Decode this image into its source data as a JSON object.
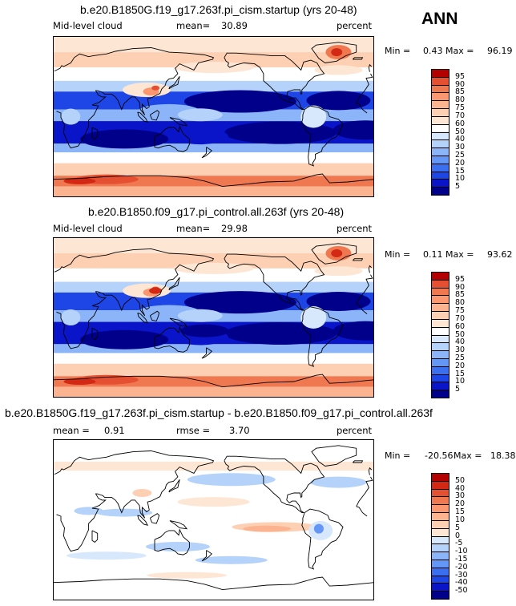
{
  "season": "ANN",
  "colors": {
    "seq": [
      "#00008b",
      "#0a14c8",
      "#1e46e6",
      "#3c6ef0",
      "#6496f5",
      "#8cb4f8",
      "#b4d2fa",
      "#d8e8fc",
      "#ffffff",
      "#fde6d4",
      "#fdd0b4",
      "#fcb490",
      "#fa9670",
      "#f07850",
      "#e65032",
      "#d22814",
      "#b40000",
      "#8b0000"
    ],
    "land": "#000000"
  },
  "chart_data": [
    {
      "type": "heatmap",
      "title": "b.e20.B1850G.f19_g17.263f.pi_cism.startup (yrs 20-48)",
      "variable": "Mid-level cloud",
      "mean_label": "mean=",
      "mean": "30.89",
      "units": "percent",
      "min_label": "Min =",
      "min": "0.43",
      "max_label": "Max =",
      "max": "96.19",
      "levels": [
        "5",
        "10",
        "15",
        "20",
        "25",
        "30",
        "40",
        "50",
        "60",
        "70",
        "75",
        "80",
        "85",
        "90",
        "95"
      ],
      "colorbar_colors": [
        "#00008b",
        "#0a14c8",
        "#1e46e6",
        "#3c6ef0",
        "#6496f5",
        "#8cb4f8",
        "#b4d2fa",
        "#d8e8fc",
        "#ffffff",
        "#fde6d4",
        "#fdd0b4",
        "#fcb490",
        "#fa9670",
        "#f07850",
        "#e65032",
        "#b40000"
      ]
    },
    {
      "type": "heatmap",
      "title": "b.e20.B1850.f09_g17.pi_control.all.263f (yrs 20-48)",
      "variable": "Mid-level cloud",
      "mean_label": "mean=",
      "mean": "29.98",
      "units": "percent",
      "min_label": "Min =",
      "min": "0.11",
      "max_label": "Max =",
      "max": "93.62",
      "levels": [
        "5",
        "10",
        "15",
        "20",
        "25",
        "30",
        "40",
        "50",
        "60",
        "70",
        "75",
        "80",
        "85",
        "90",
        "95"
      ],
      "colorbar_colors": [
        "#00008b",
        "#0a14c8",
        "#1e46e6",
        "#3c6ef0",
        "#6496f5",
        "#8cb4f8",
        "#b4d2fa",
        "#d8e8fc",
        "#ffffff",
        "#fde6d4",
        "#fdd0b4",
        "#fcb490",
        "#fa9670",
        "#f07850",
        "#e65032",
        "#b40000"
      ]
    },
    {
      "type": "heatmap",
      "title": "b.e20.B1850G.f19_g17.263f.pi_cism.startup - b.e20.B1850.f09_g17.pi_control.all.263f",
      "mean_label": "mean =",
      "mean": "0.91",
      "rmse_label": "rmse =",
      "rmse": "3.70",
      "units": "percent",
      "min_label": "Min =",
      "min": "-20.56",
      "max_label": "Max =",
      "max": "18.38",
      "levels": [
        "-50",
        "-40",
        "-30",
        "-20",
        "-15",
        "-10",
        "-5",
        "0",
        "5",
        "10",
        "15",
        "20",
        "30",
        "40",
        "50"
      ],
      "colorbar_colors": [
        "#00008b",
        "#0a14c8",
        "#1e46e6",
        "#3c6ef0",
        "#6496f5",
        "#8cb4f8",
        "#b4d2fa",
        "#d8e8fc",
        "#fde6d4",
        "#fdd0b4",
        "#fcb490",
        "#fa9670",
        "#f07850",
        "#e65032",
        "#d22814",
        "#b40000"
      ]
    }
  ]
}
